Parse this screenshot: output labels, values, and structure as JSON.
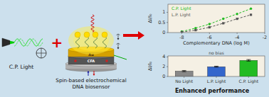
{
  "chart_data": [
    {
      "type": "line",
      "xlabel": "Complementary DNA (log M)",
      "ylabel": "ΔI/I₀",
      "x": [
        -8,
        -7,
        -6,
        -5,
        -4,
        -3
      ],
      "series": [
        {
          "name": "C.P. Light",
          "color": "#22bb22",
          "marker": "circle",
          "line_style": "dashed",
          "values": [
            0.05,
            0.22,
            0.42,
            0.68,
            0.92,
            1.18
          ]
        },
        {
          "name": "L.P. Light",
          "color": "#555555",
          "marker": "square",
          "line_style": "dashed",
          "values": [
            0.02,
            0.12,
            0.26,
            0.46,
            0.68,
            0.88
          ]
        }
      ],
      "xlim": [
        -9,
        -2
      ],
      "xticks": [
        -8,
        -6,
        -4,
        -2
      ],
      "ylim": [
        0,
        1.4
      ],
      "yticks": [
        0,
        0.5,
        1
      ],
      "grid": false,
      "legend": "upper left",
      "annotations": [
        "C.P. Light",
        "+",
        "CFA",
        "Au",
        "Spin-based electrochemical\nDNA biosensor"
      ]
    },
    {
      "type": "bar",
      "title": "Enhanced performance",
      "ylabel": "ΔI/I₀",
      "categories": [
        "No Light",
        "L.P. Light",
        "C.P. Light"
      ],
      "values": [
        1.1,
        2.0,
        3.3
      ],
      "errors": [
        0.12,
        0.1,
        0.16
      ],
      "colors": [
        "#888888",
        "#3366cc",
        "#22bb22"
      ],
      "ylim": [
        0,
        4.2
      ],
      "yticks": [
        0,
        2,
        4
      ],
      "grid": false,
      "annotations": [
        "no bias"
      ]
    }
  ]
}
